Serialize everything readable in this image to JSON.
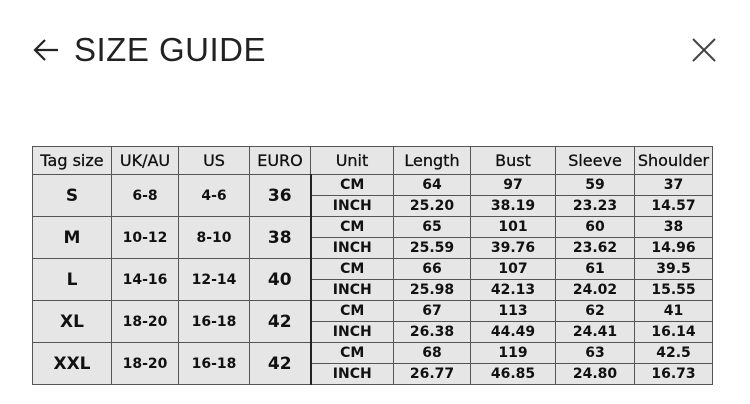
{
  "header": {
    "title": "SIZE GUIDE",
    "back_icon": "arrow-left-icon",
    "close_icon": "close-icon"
  },
  "table": {
    "columns": [
      "Tag size",
      "UK/AU",
      "US",
      "EURO",
      "Unit",
      "Length",
      "Bust",
      "Sleeve",
      "Shoulder"
    ],
    "unit_labels": {
      "cm": "CM",
      "inch": "INCH"
    },
    "rows": [
      {
        "tag": "S",
        "uk": "6-8",
        "us": "4-6",
        "euro": "36",
        "cm": {
          "length": "64",
          "bust": "97",
          "sleeve": "59",
          "shoulder": "37"
        },
        "inch": {
          "length": "25.20",
          "bust": "38.19",
          "sleeve": "23.23",
          "shoulder": "14.57"
        }
      },
      {
        "tag": "M",
        "uk": "10-12",
        "us": "8-10",
        "euro": "38",
        "cm": {
          "length": "65",
          "bust": "101",
          "sleeve": "60",
          "shoulder": "38"
        },
        "inch": {
          "length": "25.59",
          "bust": "39.76",
          "sleeve": "23.62",
          "shoulder": "14.96"
        }
      },
      {
        "tag": "L",
        "uk": "14-16",
        "us": "12-14",
        "euro": "40",
        "cm": {
          "length": "66",
          "bust": "107",
          "sleeve": "61",
          "shoulder": "39.5"
        },
        "inch": {
          "length": "25.98",
          "bust": "42.13",
          "sleeve": "24.02",
          "shoulder": "15.55"
        }
      },
      {
        "tag": "XL",
        "uk": "18-20",
        "us": "16-18",
        "euro": "42",
        "cm": {
          "length": "67",
          "bust": "113",
          "sleeve": "62",
          "shoulder": "41"
        },
        "inch": {
          "length": "26.38",
          "bust": "44.49",
          "sleeve": "24.41",
          "shoulder": "16.14"
        }
      },
      {
        "tag": "XXL",
        "uk": "18-20",
        "us": "16-18",
        "euro": "42",
        "cm": {
          "length": "68",
          "bust": "119",
          "sleeve": "63",
          "shoulder": "42.5"
        },
        "inch": {
          "length": "26.77",
          "bust": "46.85",
          "sleeve": "24.80",
          "shoulder": "16.73"
        }
      }
    ]
  }
}
